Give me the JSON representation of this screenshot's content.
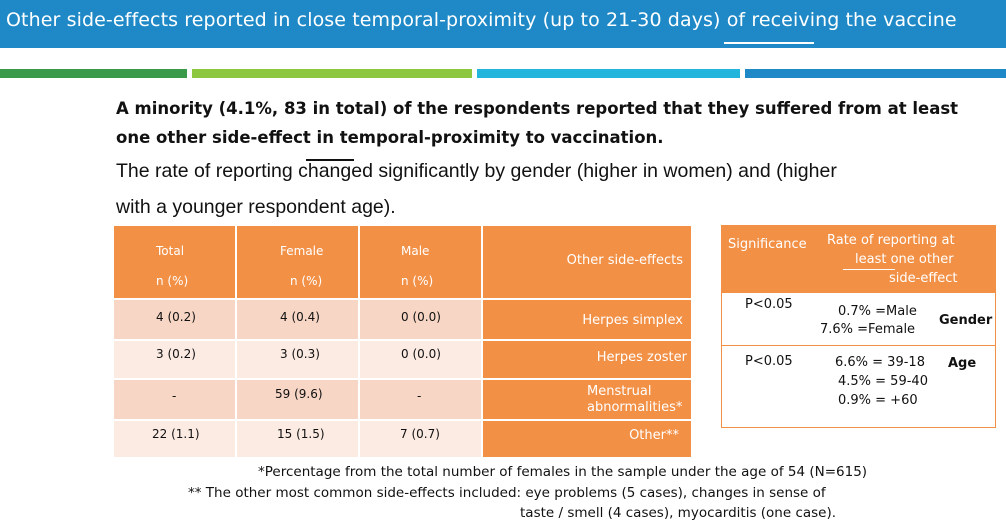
{
  "header": {
    "title": "Other side-effects reported in close temporal-proximity (up to 21-30 days) of receiving the vaccine"
  },
  "intro": {
    "line1": "A minority (4.1%, 83 in total) of the respondents reported that they suffered from at least",
    "line2": "one other side-effect in temporal-proximity to vaccination.",
    "line3": "The rate of reporting changed significantly by gender (higher in women) and (higher",
    "line4": "with a younger respondent age)."
  },
  "table": {
    "headers": {
      "total": "Total",
      "total_unit": "n (%)",
      "female": "Female",
      "female_unit": "n (%)",
      "male": "Male",
      "male_unit": "n (%)",
      "effects": "Other side-effects"
    },
    "rows": [
      {
        "total": "4 (0.2)",
        "female": "4 (0.4)",
        "male": "0 (0.0)",
        "label": "Herpes simplex"
      },
      {
        "total": "3 (0.2)",
        "female": "3 (0.3)",
        "male": "0 (0.0)",
        "label": "Herpes zoster"
      },
      {
        "total": "-",
        "female": "59 (9.6)",
        "male": "-",
        "label": "Menstrual abnormalities*",
        "label_a": "Menstrual",
        "label_b": "abnormalities*"
      },
      {
        "total": "22 (1.1)",
        "female": "15 (1.5)",
        "male": "7 (0.7)",
        "label": "Other**"
      }
    ]
  },
  "significance": {
    "header_sig": "Significance",
    "header_rate1": "Rate of reporting at",
    "header_rate2": "least one other",
    "header_rate3": "side-effect",
    "gender": {
      "p": "P<0.05",
      "line1": "0.7% =Male",
      "line2": "7.6% =Female",
      "label": "Gender"
    },
    "age": {
      "p": "P<0.05",
      "line1": "6.6% = 39-18",
      "line2": "4.5% = 59-40",
      "line3": "0.9% = +60",
      "label": "Age"
    }
  },
  "footnotes": {
    "f1": "*Percentage from the total number of females in the sample under the age of 54 (N=615)",
    "f2a": "** The other most common side-effects included: eye problems (5 cases), changes in sense of",
    "f2b": "taste / smell (4 cases), myocarditis (one case)."
  },
  "colors": {
    "title_bar": "#1e89c6",
    "stripe_green": "#3b9a4a",
    "stripe_lime": "#8dc63f",
    "stripe_cyan": "#24b5dc",
    "stripe_blue": "#1e89c6",
    "orange": "#f29046",
    "row_dark": "#f8d6c5",
    "row_light": "#fcebe3"
  }
}
